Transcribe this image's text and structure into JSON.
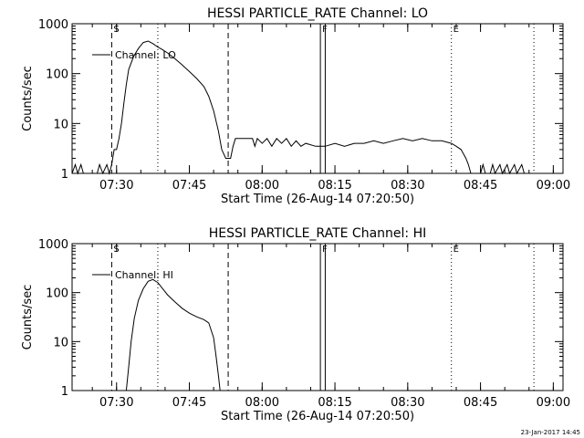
{
  "chart_data": [
    {
      "type": "line",
      "title": "HESSI PARTICLE_RATE Channel: LO",
      "xlabel": "Start Time (26-Aug-14 07:20:50)",
      "ylabel": "Counts/sec",
      "y_scale": "log",
      "ylim": [
        1,
        1000
      ],
      "xlim": [
        "07:20:50",
        "09:02:00"
      ],
      "x_ticks": [
        "07:30",
        "07:45",
        "08:00",
        "08:15",
        "08:30",
        "08:45",
        "09:00"
      ],
      "y_ticks": [
        "1",
        "10",
        "100",
        "1000"
      ],
      "legend": "Channel: LO",
      "legend_position": "top-left",
      "markers": [
        {
          "label": "S",
          "x": "07:29:00",
          "style": "dashed"
        },
        {
          "label": "",
          "x": "07:38:30",
          "style": "dotted"
        },
        {
          "label": "",
          "x": "07:53:00",
          "style": "dashed"
        },
        {
          "label": "F",
          "x": "08:12:00",
          "style": "solid"
        },
        {
          "label": "",
          "x": "08:13:00",
          "style": "solid"
        },
        {
          "label": "E",
          "x": "08:39:00",
          "style": "dotted"
        },
        {
          "label": "",
          "x": "08:56:00",
          "style": "dotted"
        }
      ],
      "series": [
        {
          "name": "Channel: LO",
          "points": [
            [
              "07:20:50",
              0.5
            ],
            [
              "07:21:30",
              1.5
            ],
            [
              "07:22:00",
              0.5
            ],
            [
              "07:22:40",
              1.5
            ],
            [
              "07:23:10",
              0.5
            ],
            [
              "07:26:00",
              0.5
            ],
            [
              "07:26:30",
              1.5
            ],
            [
              "07:27:10",
              0.5
            ],
            [
              "07:28:00",
              1.5
            ],
            [
              "07:28:30",
              0.5
            ],
            [
              "07:29:00",
              1.5
            ],
            [
              "07:29:30",
              3
            ],
            [
              "07:30:00",
              3
            ],
            [
              "07:30:30",
              5
            ],
            [
              "07:31:00",
              10
            ],
            [
              "07:31:30",
              25
            ],
            [
              "07:32:00",
              60
            ],
            [
              "07:32:30",
              120
            ],
            [
              "07:33:30",
              220
            ],
            [
              "07:34:30",
              320
            ],
            [
              "07:35:30",
              420
            ],
            [
              "07:36:30",
              450
            ],
            [
              "07:37:30",
              400
            ],
            [
              "07:38:30",
              340
            ],
            [
              "07:39:30",
              300
            ],
            [
              "07:40:30",
              260
            ],
            [
              "07:42:00",
              200
            ],
            [
              "07:43:30",
              150
            ],
            [
              "07:45:00",
              110
            ],
            [
              "07:46:30",
              80
            ],
            [
              "07:48:00",
              55
            ],
            [
              "07:49:00",
              35
            ],
            [
              "07:50:00",
              18
            ],
            [
              "07:51:00",
              7
            ],
            [
              "07:51:40",
              3
            ],
            [
              "07:52:30",
              2
            ],
            [
              "07:53:30",
              2
            ],
            [
              "07:54:00",
              3.5
            ],
            [
              "07:54:30",
              5
            ],
            [
              "07:58:00",
              5
            ],
            [
              "07:58:30",
              3.5
            ],
            [
              "07:59:00",
              5
            ],
            [
              "08:00:00",
              4
            ],
            [
              "08:01:00",
              5
            ],
            [
              "08:02:00",
              3.5
            ],
            [
              "08:03:00",
              5
            ],
            [
              "08:04:00",
              4
            ],
            [
              "08:05:00",
              5
            ],
            [
              "08:06:00",
              3.5
            ],
            [
              "08:07:00",
              4.5
            ],
            [
              "08:08:00",
              3.5
            ],
            [
              "08:09:00",
              4
            ],
            [
              "08:11:00",
              3.5
            ],
            [
              "08:13:00",
              3.5
            ],
            [
              "08:15:00",
              4
            ],
            [
              "08:17:00",
              3.5
            ],
            [
              "08:19:00",
              4
            ],
            [
              "08:21:00",
              4
            ],
            [
              "08:23:00",
              4.5
            ],
            [
              "08:25:00",
              4
            ],
            [
              "08:27:00",
              4.5
            ],
            [
              "08:29:00",
              5
            ],
            [
              "08:31:00",
              4.5
            ],
            [
              "08:33:00",
              5
            ],
            [
              "08:35:00",
              4.5
            ],
            [
              "08:37:00",
              4.5
            ],
            [
              "08:39:00",
              4
            ],
            [
              "08:40:00",
              3.5
            ],
            [
              "08:41:00",
              3
            ],
            [
              "08:42:00",
              2
            ],
            [
              "08:42:30",
              1.5
            ],
            [
              "08:43:00",
              1
            ],
            [
              "08:43:30",
              0.5
            ],
            [
              "08:45:00",
              0.5
            ],
            [
              "08:45:30",
              1.5
            ],
            [
              "08:46:00",
              0.5
            ],
            [
              "08:47:00",
              0.5
            ],
            [
              "08:47:30",
              1.5
            ],
            [
              "08:48:00",
              0.5
            ],
            [
              "08:49:00",
              1.5
            ],
            [
              "08:49:30",
              0.5
            ],
            [
              "08:50:30",
              1.5
            ],
            [
              "08:51:00",
              0.5
            ],
            [
              "08:52:00",
              1.5
            ],
            [
              "08:52:30",
              0.5
            ],
            [
              "08:53:30",
              1.5
            ],
            [
              "08:54:00",
              0.5
            ]
          ]
        }
      ]
    },
    {
      "type": "line",
      "title": "HESSI PARTICLE_RATE Channel: HI",
      "xlabel": "Start Time (26-Aug-14 07:20:50)",
      "ylabel": "Counts/sec",
      "y_scale": "log",
      "ylim": [
        1,
        1000
      ],
      "xlim": [
        "07:20:50",
        "09:02:00"
      ],
      "x_ticks": [
        "07:30",
        "07:45",
        "08:00",
        "08:15",
        "08:30",
        "08:45",
        "09:00"
      ],
      "y_ticks": [
        "1",
        "10",
        "100",
        "1000"
      ],
      "legend": "Channel: HI",
      "legend_position": "top-left",
      "markers": [
        {
          "label": "S",
          "x": "07:29:00",
          "style": "dashed"
        },
        {
          "label": "",
          "x": "07:38:30",
          "style": "dotted"
        },
        {
          "label": "",
          "x": "07:53:00",
          "style": "dashed"
        },
        {
          "label": "F",
          "x": "08:12:00",
          "style": "solid"
        },
        {
          "label": "",
          "x": "08:13:00",
          "style": "solid"
        },
        {
          "label": "E",
          "x": "08:39:00",
          "style": "dotted"
        },
        {
          "label": "",
          "x": "08:56:00",
          "style": "dotted"
        }
      ],
      "series": [
        {
          "name": "Channel: HI",
          "points": [
            [
              "07:31:40",
              0.6
            ],
            [
              "07:32:00",
              1
            ],
            [
              "07:32:30",
              3
            ],
            [
              "07:33:00",
              10
            ],
            [
              "07:33:40",
              30
            ],
            [
              "07:34:30",
              70
            ],
            [
              "07:35:30",
              120
            ],
            [
              "07:36:30",
              170
            ],
            [
              "07:37:30",
              185
            ],
            [
              "07:38:30",
              160
            ],
            [
              "07:39:30",
              120
            ],
            [
              "07:40:30",
              90
            ],
            [
              "07:42:00",
              65
            ],
            [
              "07:43:30",
              48
            ],
            [
              "07:45:00",
              38
            ],
            [
              "07:46:30",
              32
            ],
            [
              "07:48:00",
              28
            ],
            [
              "07:49:00",
              24
            ],
            [
              "07:50:00",
              12
            ],
            [
              "07:50:30",
              5
            ],
            [
              "07:51:00",
              2
            ],
            [
              "07:51:20",
              1
            ],
            [
              "07:51:40",
              0.5
            ]
          ]
        }
      ]
    }
  ],
  "footer": {
    "timestamp": "23-Jan-2017 14:45"
  }
}
